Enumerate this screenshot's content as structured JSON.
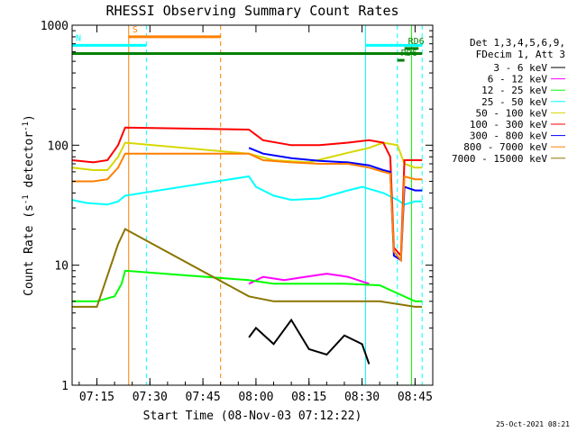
{
  "chart_data": {
    "type": "line",
    "title": "RHESSI Observing Summary Count Rates",
    "xlabel": "Start Time (08-Nov-03 07:12:22)",
    "ylabel_main": "Count Rate (s",
    "ylabel_sup1": "-1",
    "ylabel_mid": " detector",
    "ylabel_sup2": "-1",
    "ylabel_end": ")",
    "y_scale": "log",
    "xlim": [
      "07:08",
      "08:50"
    ],
    "ylim": [
      1,
      1000
    ],
    "x_ticks": [
      "07:15",
      "07:30",
      "07:45",
      "08:00",
      "08:15",
      "08:30",
      "08:45"
    ],
    "y_ticks": [
      "1",
      "10",
      "100",
      "1000"
    ],
    "grid": false,
    "legend_position": "right",
    "legend_header": [
      "Det 1,3,4,5,6,9,",
      "FDecim 1, Att 3"
    ],
    "legend": [
      {
        "label": "3 - 6 keV",
        "color": "#000000"
      },
      {
        "label": "6 - 12 keV",
        "color": "#ff00ff"
      },
      {
        "label": "12 - 25 keV",
        "color": "#00ff00"
      },
      {
        "label": "25 - 50 keV",
        "color": "#00ffff"
      },
      {
        "label": "50 - 100 keV",
        "color": "#d7d700"
      },
      {
        "label": "100 - 300 keV",
        "color": "#ff0000"
      },
      {
        "label": "300 - 800 keV",
        "color": "#0000ff"
      },
      {
        "label": "800 - 7000 keV",
        "color": "#ff7f00"
      },
      {
        "label": "7000 - 15000 keV",
        "color": "#8b7500"
      }
    ],
    "series": [
      {
        "name": "3 - 6 keV",
        "color": "#000000",
        "x": [
          "07:58",
          "08:00",
          "08:05",
          "08:10",
          "08:15",
          "08:20",
          "08:25",
          "08:30",
          "08:32"
        ],
        "y": [
          2.5,
          3,
          2.2,
          3.5,
          2.0,
          1.8,
          2.6,
          2.2,
          1.5
        ]
      },
      {
        "name": "6 - 12 keV",
        "color": "#ff00ff",
        "x": [
          "07:58",
          "08:02",
          "08:08",
          "08:14",
          "08:20",
          "08:26",
          "08:32"
        ],
        "y": [
          7,
          8,
          7.5,
          8,
          8.5,
          8,
          7
        ]
      },
      {
        "name": "12 - 25 keV",
        "color": "#00ff00",
        "x": [
          "07:08",
          "07:15",
          "07:20",
          "07:22",
          "07:23",
          "07:58",
          "08:05",
          "08:15",
          "08:25",
          "08:35",
          "08:45",
          "08:47"
        ],
        "y": [
          5,
          5,
          5.5,
          7,
          9,
          7.5,
          7,
          7,
          7,
          6.8,
          5,
          5
        ]
      },
      {
        "name": "25 - 50 keV",
        "color": "#00ffff",
        "x": [
          "07:08",
          "07:12",
          "07:18",
          "07:21",
          "07:23",
          "07:58",
          "08:00",
          "08:05",
          "08:10",
          "08:18",
          "08:26",
          "08:30",
          "08:36",
          "08:40",
          "08:42",
          "08:45",
          "08:47"
        ],
        "y": [
          35,
          33,
          32,
          34,
          38,
          55,
          45,
          38,
          35,
          36,
          42,
          45,
          40,
          35,
          32,
          34,
          34
        ]
      },
      {
        "name": "50 - 100 keV",
        "color": "#d7d700",
        "x": [
          "07:08",
          "07:14",
          "07:18",
          "07:21",
          "07:23",
          "07:58",
          "08:05",
          "08:15",
          "08:25",
          "08:32",
          "08:36",
          "08:40",
          "08:42",
          "08:45",
          "08:47"
        ],
        "y": [
          65,
          62,
          62,
          80,
          105,
          85,
          75,
          72,
          85,
          95,
          105,
          100,
          70,
          65,
          65
        ]
      },
      {
        "name": "100 - 300 keV",
        "color": "#ff0000",
        "x": [
          "07:08",
          "07:14",
          "07:18",
          "07:21",
          "07:23",
          "07:58",
          "08:02",
          "08:10",
          "08:18",
          "08:26",
          "08:32",
          "08:36",
          "08:38",
          "08:39",
          "08:41",
          "08:42",
          "08:45",
          "08:47"
        ],
        "y": [
          75,
          72,
          75,
          100,
          140,
          135,
          110,
          100,
          100,
          105,
          110,
          105,
          80,
          14,
          12,
          75,
          75,
          75
        ]
      },
      {
        "name": "300 - 800 keV",
        "color": "#0000ff",
        "x": [
          "07:58",
          "08:02",
          "08:10",
          "08:18",
          "08:26",
          "08:32",
          "08:36",
          "08:38",
          "08:39",
          "08:41",
          "08:42",
          "08:45",
          "08:47"
        ],
        "y": [
          95,
          85,
          78,
          74,
          72,
          68,
          62,
          60,
          12,
          11,
          45,
          42,
          42
        ]
      },
      {
        "name": "800 - 7000 keV",
        "color": "#ff7f00",
        "x": [
          "07:08",
          "07:14",
          "07:18",
          "07:21",
          "07:23",
          "07:58",
          "08:02",
          "08:10",
          "08:18",
          "08:26",
          "08:32",
          "08:36",
          "08:38",
          "08:39",
          "08:41",
          "08:42",
          "08:45",
          "08:47"
        ],
        "y": [
          50,
          50,
          52,
          65,
          85,
          85,
          75,
          72,
          70,
          70,
          65,
          60,
          58,
          13,
          11,
          55,
          52,
          52
        ]
      },
      {
        "name": "7000 - 15000 keV",
        "color": "#8b7500",
        "x": [
          "07:08",
          "07:15",
          "07:21",
          "07:23",
          "07:58",
          "08:05",
          "08:15",
          "08:25",
          "08:35",
          "08:45",
          "08:47"
        ],
        "y": [
          4.5,
          4.5,
          15,
          20,
          5.5,
          5,
          5,
          5,
          5,
          4.5,
          4.5
        ]
      }
    ],
    "segments": [
      {
        "label": "S",
        "color": "#ff7f00",
        "x_start": "07:24",
        "x_end": "07:50",
        "y": 800
      },
      {
        "label": "N",
        "color": "#00ffff",
        "x_start": "07:08",
        "x_end": "07:29",
        "y": 680
      },
      {
        "label": "",
        "color": "#008000",
        "x_start": "07:08",
        "x_end": "08:47",
        "y": 580
      },
      {
        "label": "",
        "color": "#00ffff",
        "x_start": "08:31",
        "x_end": "08:47",
        "y": 680
      },
      {
        "label": "RD6",
        "color": "#008000",
        "x_start": "08:42",
        "x_end": "08:46",
        "y": 640
      },
      {
        "label": "RD6",
        "color": "#008000",
        "x_start": "08:40",
        "x_end": "08:42",
        "y": 510
      }
    ],
    "vlines": [
      {
        "x": "07:08",
        "color": "#00ffff",
        "dash": false
      },
      {
        "x": "07:24",
        "color": "#ff7f00",
        "dash": false
      },
      {
        "x": "07:29",
        "color": "#00ffff",
        "dash": true
      },
      {
        "x": "07:50",
        "color": "#ff7f00",
        "dash": true
      },
      {
        "x": "08:31",
        "color": "#00ffff",
        "dash": false
      },
      {
        "x": "08:40",
        "color": "#00ffff",
        "dash": true
      },
      {
        "x": "08:44",
        "color": "#00ff00",
        "dash": false
      },
      {
        "x": "08:47",
        "color": "#00ffff",
        "dash": true
      }
    ],
    "timestamp": "25-Oct-2021 08:21"
  }
}
